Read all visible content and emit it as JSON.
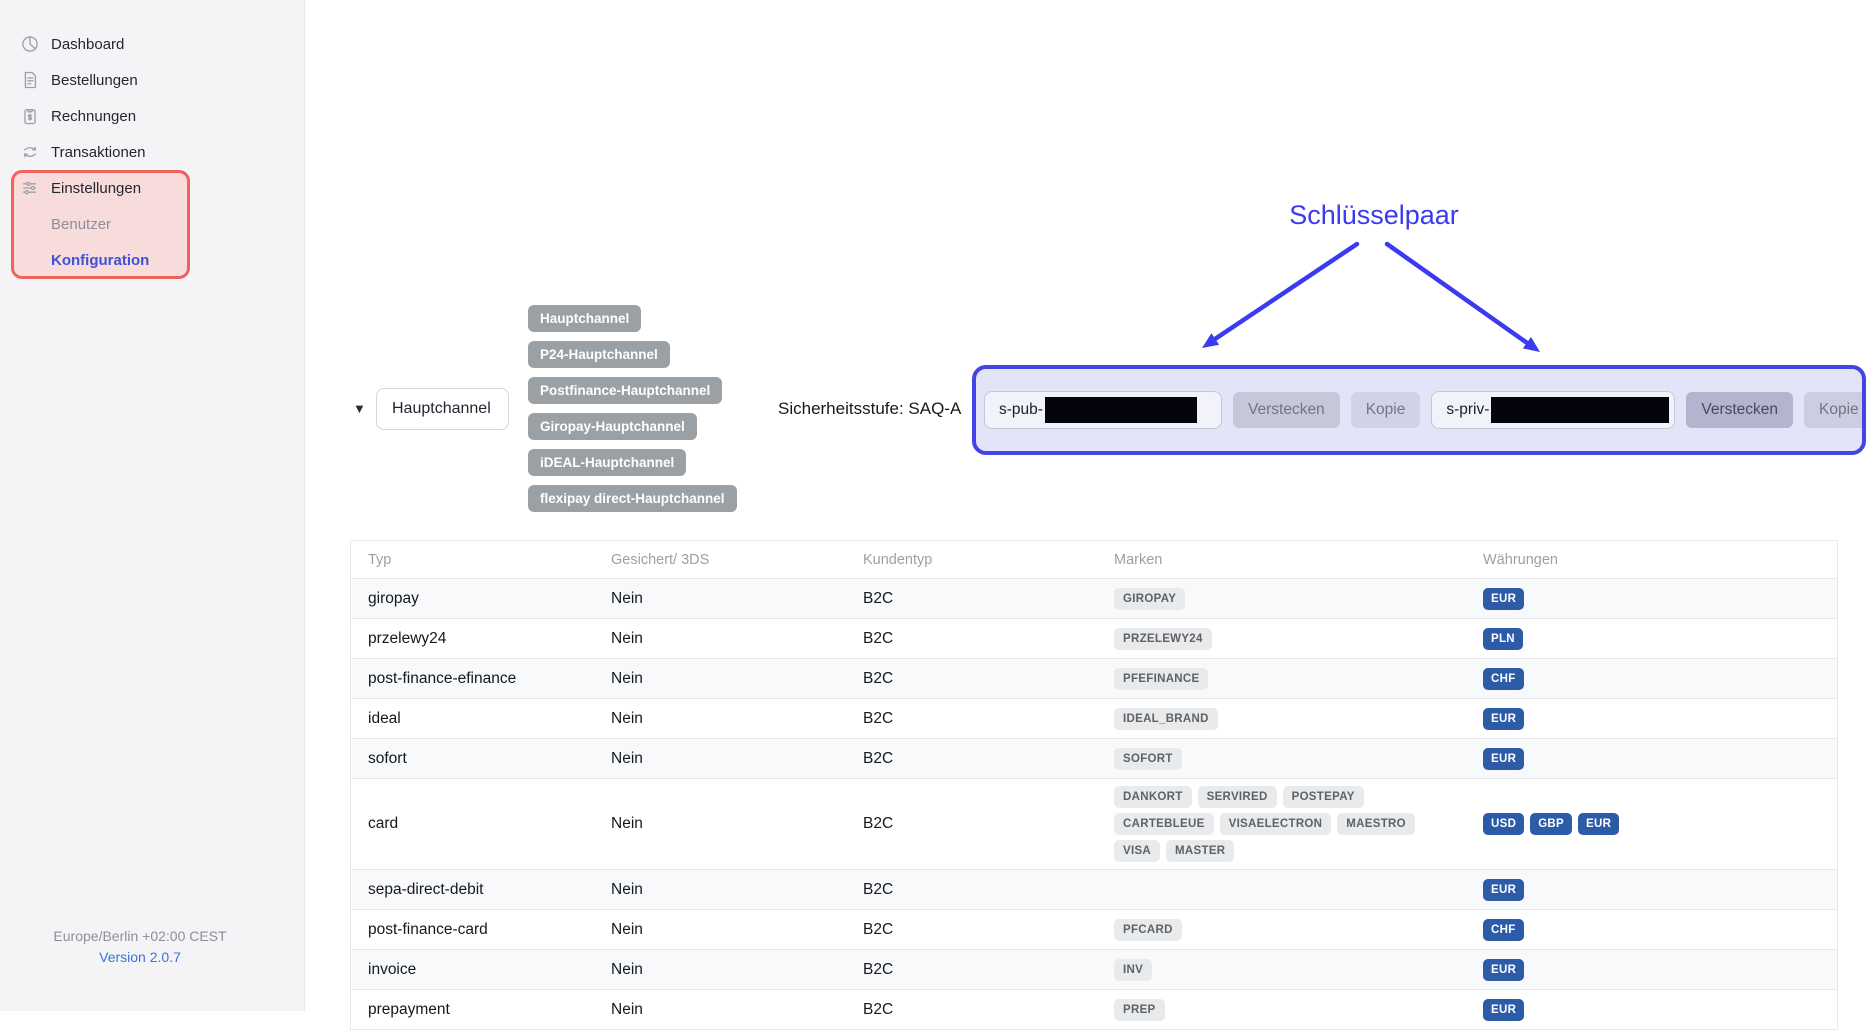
{
  "sidebar": {
    "items": [
      {
        "label": "Dashboard",
        "icon": "pie-chart-icon"
      },
      {
        "label": "Bestellungen",
        "icon": "document-icon"
      },
      {
        "label": "Rechnungen",
        "icon": "invoice-icon"
      },
      {
        "label": "Transaktionen",
        "icon": "transfer-icon"
      },
      {
        "label": "Einstellungen",
        "icon": "sliders-icon",
        "highlighted": true
      },
      {
        "label": "Benutzer",
        "child": true,
        "muted": true
      },
      {
        "label": "Konfiguration",
        "child": true,
        "active": true
      }
    ],
    "footer": {
      "timezone": "Europe/Berlin +02:00 CEST",
      "version": "Version 2.0.7"
    }
  },
  "toolbar": {
    "caret_icon": "caret-down-icon",
    "channel_select_value": "Hauptchannel",
    "channel_tags": [
      "Hauptchannel",
      "P24-Hauptchannel",
      "Postfinance-Hauptchannel",
      "Giropay-Hauptchannel",
      "iDEAL-Hauptchannel",
      "flexipay direct-Hauptchannel"
    ],
    "security_level_label": "Sicherheitsstufe: SAQ-A"
  },
  "annotation": {
    "label": "Schlüsselpaar",
    "color": "#3a3af0"
  },
  "keypair": {
    "public_key_prefix": "s-pub-",
    "private_key_prefix": "s-priv-",
    "hide_button_label": "Verstecken",
    "copy_button_label": "Kopie"
  },
  "table": {
    "columns": [
      "Typ",
      "Gesichert/ 3DS",
      "Kundentyp",
      "Marken",
      "Währungen"
    ],
    "rows": [
      {
        "typ": "giropay",
        "gesichert": "Nein",
        "kundentyp": "B2C",
        "marken": [
          "GIROPAY"
        ],
        "waehrungen": [
          "EUR"
        ]
      },
      {
        "typ": "przelewy24",
        "gesichert": "Nein",
        "kundentyp": "B2C",
        "marken": [
          "PRZELEWY24"
        ],
        "waehrungen": [
          "PLN"
        ]
      },
      {
        "typ": "post-finance-efinance",
        "gesichert": "Nein",
        "kundentyp": "B2C",
        "marken": [
          "PFEFINANCE"
        ],
        "waehrungen": [
          "CHF"
        ]
      },
      {
        "typ": "ideal",
        "gesichert": "Nein",
        "kundentyp": "B2C",
        "marken": [
          "IDEAL_BRAND"
        ],
        "waehrungen": [
          "EUR"
        ]
      },
      {
        "typ": "sofort",
        "gesichert": "Nein",
        "kundentyp": "B2C",
        "marken": [
          "SOFORT"
        ],
        "waehrungen": [
          "EUR"
        ]
      },
      {
        "typ": "card",
        "gesichert": "Nein",
        "kundentyp": "B2C",
        "marken": [
          "DANKORT",
          "SERVIRED",
          "POSTEPAY",
          "CARTEBLEUE",
          "VISAELECTRON",
          "MAESTRO",
          "VISA",
          "MASTER"
        ],
        "waehrungen": [
          "USD",
          "GBP",
          "EUR"
        ]
      },
      {
        "typ": "sepa-direct-debit",
        "gesichert": "Nein",
        "kundentyp": "B2C",
        "marken": [],
        "waehrungen": [
          "EUR"
        ]
      },
      {
        "typ": "post-finance-card",
        "gesichert": "Nein",
        "kundentyp": "B2C",
        "marken": [
          "PFCARD"
        ],
        "waehrungen": [
          "CHF"
        ]
      },
      {
        "typ": "invoice",
        "gesichert": "Nein",
        "kundentyp": "B2C",
        "marken": [
          "INV"
        ],
        "waehrungen": [
          "EUR"
        ]
      },
      {
        "typ": "prepayment",
        "gesichert": "Nein",
        "kundentyp": "B2C",
        "marken": [
          "PREP"
        ],
        "waehrungen": [
          "EUR"
        ]
      }
    ]
  },
  "colors": {
    "accent_blue": "#3a3af0",
    "currency_badge": "#2c5ba8",
    "highlight_red": "#f2625d",
    "active_link": "#3e52d9"
  }
}
